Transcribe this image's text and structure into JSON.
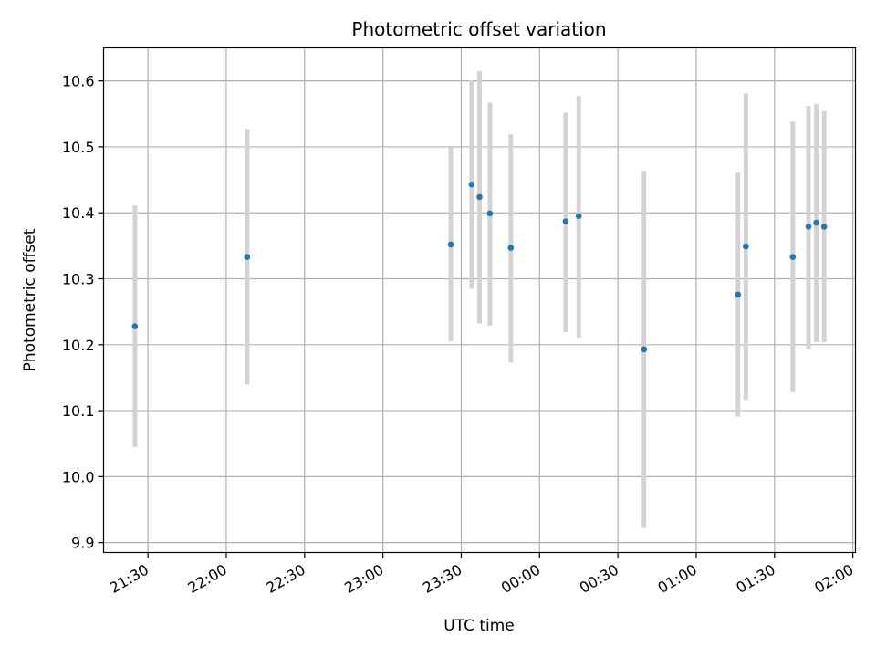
{
  "chart_data": {
    "type": "scatter",
    "title": "Photometric offset variation",
    "xlabel": "UTC time",
    "ylabel": "Photometric offset",
    "x_unit": "UTC time (HH:MM)",
    "xlim": [
      "21:13",
      "02:01"
    ],
    "ylim": [
      9.885,
      10.65
    ],
    "grid": true,
    "colors": {
      "point": "#1f77b4",
      "errorbar": "#d3d3d3",
      "grid": "#b0b0b0"
    },
    "x_ticks": [
      {
        "label": "21:30",
        "value": "21:30"
      },
      {
        "label": "22:00",
        "value": "22:00"
      },
      {
        "label": "22:30",
        "value": "22:30"
      },
      {
        "label": "23:00",
        "value": "23:00"
      },
      {
        "label": "23:30",
        "value": "23:30"
      },
      {
        "label": "00:00",
        "value": "00:00"
      },
      {
        "label": "00:30",
        "value": "00:30"
      },
      {
        "label": "01:00",
        "value": "01:00"
      },
      {
        "label": "01:30",
        "value": "01:30"
      },
      {
        "label": "02:00",
        "value": "02:00"
      }
    ],
    "y_ticks": [
      {
        "label": "9.9",
        "value": 9.9
      },
      {
        "label": "10.0",
        "value": 10.0
      },
      {
        "label": "10.1",
        "value": 10.1
      },
      {
        "label": "10.2",
        "value": 10.2
      },
      {
        "label": "10.3",
        "value": 10.3
      },
      {
        "label": "10.4",
        "value": 10.4
      },
      {
        "label": "10.5",
        "value": 10.5
      },
      {
        "label": "10.6",
        "value": 10.6
      }
    ],
    "points": [
      {
        "time": "21:25",
        "y": 10.228,
        "low": 10.045,
        "high": 10.411
      },
      {
        "time": "22:08",
        "y": 10.333,
        "low": 10.14,
        "high": 10.527
      },
      {
        "time": "23:26",
        "y": 10.352,
        "low": 10.205,
        "high": 10.499
      },
      {
        "time": "23:34",
        "y": 10.443,
        "low": 10.285,
        "high": 10.601
      },
      {
        "time": "23:37",
        "y": 10.424,
        "low": 10.232,
        "high": 10.615
      },
      {
        "time": "23:41",
        "y": 10.399,
        "low": 10.229,
        "high": 10.567
      },
      {
        "time": "23:49",
        "y": 10.347,
        "low": 10.173,
        "high": 10.519
      },
      {
        "time": "00:10",
        "y": 10.387,
        "low": 10.219,
        "high": 10.552
      },
      {
        "time": "00:15",
        "y": 10.395,
        "low": 10.211,
        "high": 10.577
      },
      {
        "time": "00:40",
        "y": 10.193,
        "low": 9.922,
        "high": 10.464
      },
      {
        "time": "01:16",
        "y": 10.276,
        "low": 10.091,
        "high": 10.461
      },
      {
        "time": "01:19",
        "y": 10.349,
        "low": 10.116,
        "high": 10.581
      },
      {
        "time": "01:37",
        "y": 10.333,
        "low": 10.128,
        "high": 10.538
      },
      {
        "time": "01:43",
        "y": 10.379,
        "low": 10.193,
        "high": 10.562
      },
      {
        "time": "01:46",
        "y": 10.385,
        "low": 10.204,
        "high": 10.565
      },
      {
        "time": "01:49",
        "y": 10.379,
        "low": 10.204,
        "high": 10.554
      }
    ]
  }
}
